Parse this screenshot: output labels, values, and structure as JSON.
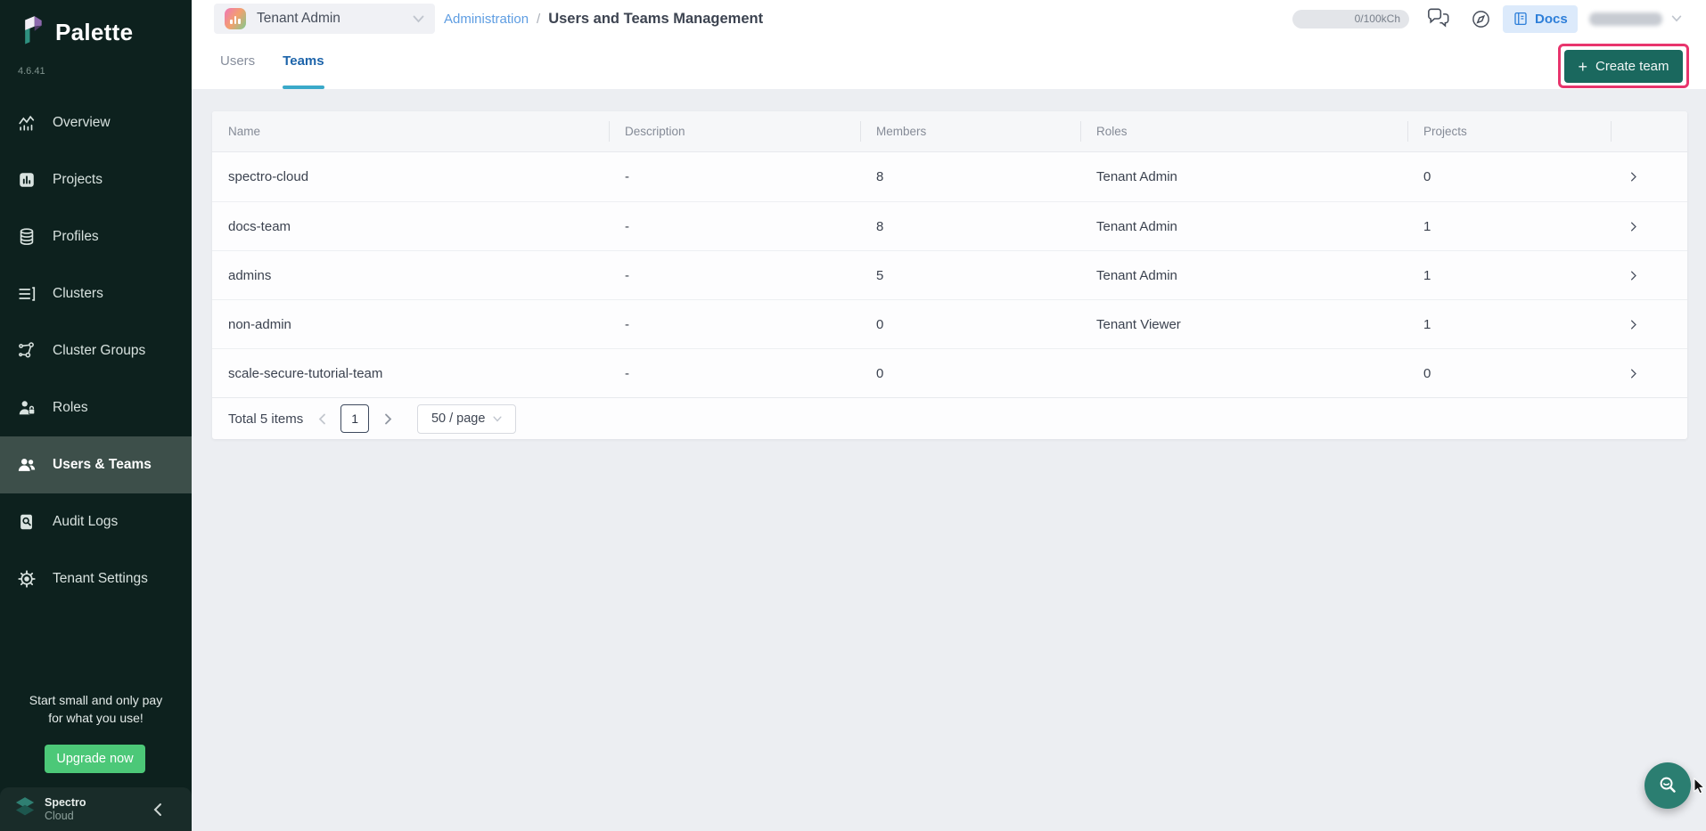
{
  "app": {
    "brand": "Palette",
    "version": "4.6.41"
  },
  "colors": {
    "sidebar-bg": "#0d211e",
    "sidebar-active-bg": "#3d4f4a",
    "create-btn": "#1a685e",
    "annotation": "#e8356d",
    "upgrade": "#4cc878",
    "tab-active": "#1d64aa",
    "tab-underline": "#3aa9c9",
    "link-blue": "#5e9de2",
    "docs-blue": "#2e7fd9",
    "docs-bg": "#dceafb",
    "fab": "#2b7e71",
    "content-bg": "#eceef2"
  },
  "sidebar": {
    "items": [
      {
        "label": "Overview",
        "icon": "overview-icon",
        "active": false
      },
      {
        "label": "Projects",
        "icon": "projects-icon",
        "active": false
      },
      {
        "label": "Profiles",
        "icon": "profiles-icon",
        "active": false
      },
      {
        "label": "Clusters",
        "icon": "clusters-icon",
        "active": false
      },
      {
        "label": "Cluster Groups",
        "icon": "cluster-groups-icon",
        "active": false
      },
      {
        "label": "Roles",
        "icon": "roles-icon",
        "active": false
      },
      {
        "label": "Users & Teams",
        "icon": "users-teams-icon",
        "active": true
      },
      {
        "label": "Audit Logs",
        "icon": "audit-logs-icon",
        "active": false
      },
      {
        "label": "Tenant Settings",
        "icon": "gear-icon",
        "active": false
      }
    ],
    "promo": {
      "line1": "Start small and only pay",
      "line2": "for what you use!",
      "button": "Upgrade now"
    },
    "footer": {
      "brand_top": "Spectro",
      "brand_bottom": "Cloud",
      "collapse_icon": "chevron-left-icon"
    }
  },
  "header": {
    "scope_selector": {
      "label": "Tenant Admin",
      "icon": "tenant-scope-icon"
    },
    "breadcrumb": {
      "section": "Administration",
      "separator": "/",
      "page": "Users and Teams Management"
    },
    "usage_pill": "0/100kCh",
    "docs_button": "Docs",
    "icons": [
      "chat-icon",
      "compass-icon",
      "book-icon",
      "chevron-down-icon"
    ]
  },
  "tabs": [
    {
      "label": "Users",
      "active": false
    },
    {
      "label": "Teams",
      "active": true
    }
  ],
  "create_team_button": {
    "plus": "+",
    "label": "Create team"
  },
  "table": {
    "columns": [
      "Name",
      "Description",
      "Members",
      "Roles",
      "Projects"
    ],
    "rows": [
      {
        "name": "spectro-cloud",
        "description": "-",
        "members": "8",
        "roles": "Tenant Admin",
        "projects": "0"
      },
      {
        "name": "docs-team",
        "description": "-",
        "members": "8",
        "roles": "Tenant Admin",
        "projects": "1"
      },
      {
        "name": "admins",
        "description": "-",
        "members": "5",
        "roles": "Tenant Admin",
        "projects": "1"
      },
      {
        "name": "non-admin",
        "description": "-",
        "members": "0",
        "roles": "Tenant Viewer",
        "projects": "1"
      },
      {
        "name": "scale-secure-tutorial-team",
        "description": "-",
        "members": "0",
        "roles": "",
        "projects": "0"
      }
    ],
    "pagination": {
      "total": "Total 5 items",
      "page": "1",
      "page_size": "50 / page"
    }
  },
  "fab_icon": "magnifier-smile-icon"
}
